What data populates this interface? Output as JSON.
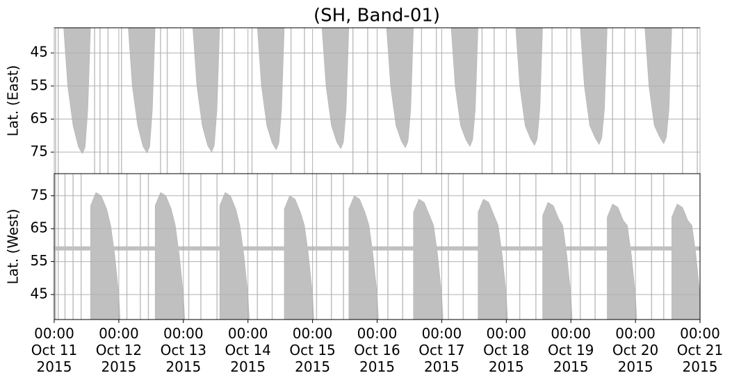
{
  "chart_data": [
    {
      "type": "area",
      "title": "(SH, Band-01)",
      "ylabel": "Lat. (East)",
      "color": "#c0c0c0",
      "invert_y": true,
      "grid": true,
      "xlim": [
        "2015-10-11 00:00",
        "2015-10-21 00:00"
      ],
      "ylim": [
        37.4,
        81.5
      ],
      "yticks": [
        45,
        55,
        65,
        75
      ],
      "polygons": [
        {
          "x": [
            "2015-10-11 03:30",
            "2015-10-11 05:00",
            "2015-10-11 07:00",
            "2015-10-11 09:00",
            "2015-10-11 10:30",
            "2015-10-11 11:30",
            "2015-10-11 12:30",
            "2015-10-11 13:30"
          ],
          "y": [
            37.4,
            55,
            67,
            73.5,
            75.5,
            73.5,
            62,
            37.4
          ]
        },
        {
          "x": [
            "2015-10-12 03:30",
            "2015-10-12 05:00",
            "2015-10-12 07:00",
            "2015-10-12 09:00",
            "2015-10-12 10:30",
            "2015-10-12 11:30",
            "2015-10-12 12:30",
            "2015-10-12 13:30"
          ],
          "y": [
            37.4,
            55,
            67,
            73.3,
            75.3,
            73.3,
            62,
            37.4
          ]
        },
        {
          "x": [
            "2015-10-13 03:30",
            "2015-10-13 05:00",
            "2015-10-13 07:00",
            "2015-10-13 09:00",
            "2015-10-13 10:30",
            "2015-10-13 11:30",
            "2015-10-13 12:30",
            "2015-10-13 13:30"
          ],
          "y": [
            37.4,
            55,
            67,
            73,
            75,
            73,
            62,
            37.4
          ]
        },
        {
          "x": [
            "2015-10-14 03:30",
            "2015-10-14 05:00",
            "2015-10-14 07:00",
            "2015-10-14 09:00",
            "2015-10-14 10:30",
            "2015-10-14 11:30",
            "2015-10-14 12:30",
            "2015-10-14 13:30"
          ],
          "y": [
            37.4,
            55,
            67,
            72.3,
            74.3,
            72.3,
            62,
            37.4
          ]
        },
        {
          "x": [
            "2015-10-15 03:30",
            "2015-10-15 05:00",
            "2015-10-15 07:00",
            "2015-10-15 09:00",
            "2015-10-15 10:30",
            "2015-10-15 11:30",
            "2015-10-15 12:30",
            "2015-10-15 13:30"
          ],
          "y": [
            37.4,
            55,
            67,
            72,
            74,
            72,
            62,
            37.4
          ]
        },
        {
          "x": [
            "2015-10-16 03:30",
            "2015-10-16 05:00",
            "2015-10-16 07:00",
            "2015-10-16 09:00",
            "2015-10-16 10:30",
            "2015-10-16 11:30",
            "2015-10-16 12:30",
            "2015-10-16 13:30"
          ],
          "y": [
            37.4,
            55,
            67,
            71.7,
            73.7,
            71.7,
            62,
            37.4
          ]
        },
        {
          "x": [
            "2015-10-17 03:30",
            "2015-10-17 05:00",
            "2015-10-17 07:00",
            "2015-10-17 09:00",
            "2015-10-17 10:30",
            "2015-10-17 11:30",
            "2015-10-17 12:30",
            "2015-10-17 13:30"
          ],
          "y": [
            37.4,
            55,
            67,
            71.3,
            73.3,
            71.3,
            62,
            37.4
          ]
        },
        {
          "x": [
            "2015-10-18 03:30",
            "2015-10-18 05:00",
            "2015-10-18 07:00",
            "2015-10-18 09:00",
            "2015-10-18 10:30",
            "2015-10-18 11:30",
            "2015-10-18 12:30",
            "2015-10-18 13:30"
          ],
          "y": [
            37.4,
            55,
            67,
            71,
            73,
            71,
            62,
            37.4
          ]
        },
        {
          "x": [
            "2015-10-19 03:30",
            "2015-10-19 05:00",
            "2015-10-19 07:00",
            "2015-10-19 09:00",
            "2015-10-19 10:30",
            "2015-10-19 11:30",
            "2015-10-19 12:30",
            "2015-10-19 13:30"
          ],
          "y": [
            37.4,
            55,
            67,
            70.7,
            72.7,
            70.7,
            62,
            37.4
          ]
        },
        {
          "x": [
            "2015-10-20 03:30",
            "2015-10-20 05:00",
            "2015-10-20 07:00",
            "2015-10-20 09:00",
            "2015-10-20 10:30",
            "2015-10-20 11:30",
            "2015-10-20 12:30",
            "2015-10-20 13:30"
          ],
          "y": [
            37.4,
            55,
            67,
            70.5,
            72.5,
            70.5,
            62,
            37.4
          ]
        }
      ],
      "tracks": [
        "2015-10-11 00:30",
        "2015-10-11 01:30",
        "2015-10-11 15:00",
        "2015-10-11 17:00",
        "2015-10-11 20:00",
        "2015-10-12 01:00",
        "2015-10-12 15:30",
        "2015-10-12 18:00",
        "2015-10-12 23:00",
        "2015-10-13 14:30",
        "2015-10-13 19:00",
        "2015-10-14 01:30",
        "2015-10-14 16:00",
        "2015-10-14 21:00",
        "2015-10-15 15:00",
        "2015-10-15 20:30",
        "2015-10-16 16:30",
        "2015-10-16 22:00",
        "2015-10-17 15:00",
        "2015-10-17 19:30",
        "2015-10-18 17:00",
        "2015-10-18 22:30",
        "2015-10-19 15:30",
        "2015-10-19 20:00",
        "2015-10-20 17:30",
        "2015-10-20 23:00"
      ]
    },
    {
      "type": "area",
      "ylabel": "Lat. (West)",
      "color": "#c0c0c0",
      "invert_y": false,
      "grid": true,
      "xlim": [
        "2015-10-11 00:00",
        "2015-10-21 00:00"
      ],
      "ylim": [
        37.4,
        81.7
      ],
      "yticks": [
        45,
        55,
        65,
        75
      ],
      "xticks": [
        {
          "value": "2015-10-11 00:00",
          "label": "00:00\nOct 11\n2015"
        },
        {
          "value": "2015-10-12 00:00",
          "label": "00:00\nOct 12\n2015"
        },
        {
          "value": "2015-10-13 00:00",
          "label": "00:00\nOct 13\n2015"
        },
        {
          "value": "2015-10-14 00:00",
          "label": "00:00\nOct 14\n2015"
        },
        {
          "value": "2015-10-15 00:00",
          "label": "00:00\nOct 15\n2015"
        },
        {
          "value": "2015-10-16 00:00",
          "label": "00:00\nOct 16\n2015"
        },
        {
          "value": "2015-10-17 00:00",
          "label": "00:00\nOct 17\n2015"
        },
        {
          "value": "2015-10-18 00:00",
          "label": "00:00\nOct 18\n2015"
        },
        {
          "value": "2015-10-19 00:00",
          "label": "00:00\nOct 19\n2015"
        },
        {
          "value": "2015-10-20 00:00",
          "label": "00:00\nOct 20\n2015"
        },
        {
          "value": "2015-10-21 00:00",
          "label": "00:00\nOct 21\n2015"
        }
      ],
      "band": {
        "y": 59,
        "x": [
          "2015-10-11 00:00",
          "2015-10-21 00:00"
        ]
      },
      "polygons": [
        {
          "x": [
            "2015-10-11 13:30",
            "2015-10-11 13:30",
            "2015-10-11 15:30",
            "2015-10-11 17:30",
            "2015-10-11 19:30",
            "2015-10-11 21:00",
            "2015-10-11 22:30",
            "2015-10-12 00:00",
            "2015-10-12 00:30"
          ],
          "y": [
            37.4,
            72,
            76,
            75,
            71,
            66,
            57,
            45,
            37.4
          ]
        },
        {
          "x": [
            "2015-10-12 13:30",
            "2015-10-12 13:30",
            "2015-10-12 15:30",
            "2015-10-12 17:30",
            "2015-10-12 19:30",
            "2015-10-12 21:00",
            "2015-10-12 22:30",
            "2015-10-13 00:00",
            "2015-10-13 00:30"
          ],
          "y": [
            37.4,
            72,
            76,
            75,
            71,
            66,
            57,
            45,
            37.4
          ]
        },
        {
          "x": [
            "2015-10-13 13:30",
            "2015-10-13 13:30",
            "2015-10-13 15:30",
            "2015-10-13 17:30",
            "2015-10-13 19:30",
            "2015-10-13 21:00",
            "2015-10-13 22:30",
            "2015-10-14 00:00",
            "2015-10-14 00:30"
          ],
          "y": [
            37.4,
            72,
            76,
            75,
            71,
            66,
            57,
            45,
            37.4
          ]
        },
        {
          "x": [
            "2015-10-14 13:30",
            "2015-10-14 13:30",
            "2015-10-14 15:30",
            "2015-10-14 17:30",
            "2015-10-14 19:30",
            "2015-10-14 21:00",
            "2015-10-14 22:30",
            "2015-10-15 00:00",
            "2015-10-15 00:30"
          ],
          "y": [
            37.4,
            71,
            75,
            74,
            70,
            66,
            57,
            45,
            37.4
          ]
        },
        {
          "x": [
            "2015-10-15 13:30",
            "2015-10-15 13:30",
            "2015-10-15 15:30",
            "2015-10-15 17:30",
            "2015-10-15 19:30",
            "2015-10-15 21:00",
            "2015-10-15 22:30",
            "2015-10-16 00:00",
            "2015-10-16 00:30"
          ],
          "y": [
            37.4,
            71,
            75,
            74,
            70,
            66,
            57,
            45,
            37.4
          ]
        },
        {
          "x": [
            "2015-10-16 13:30",
            "2015-10-16 13:30",
            "2015-10-16 15:30",
            "2015-10-16 17:30",
            "2015-10-16 19:30",
            "2015-10-16 21:00",
            "2015-10-16 22:30",
            "2015-10-17 00:00",
            "2015-10-17 00:30"
          ],
          "y": [
            37.4,
            70,
            74,
            73,
            69,
            66,
            57,
            45,
            37.4
          ]
        },
        {
          "x": [
            "2015-10-17 13:30",
            "2015-10-17 13:30",
            "2015-10-17 15:30",
            "2015-10-17 17:30",
            "2015-10-17 19:30",
            "2015-10-17 21:00",
            "2015-10-17 22:30",
            "2015-10-18 00:00",
            "2015-10-18 00:30"
          ],
          "y": [
            37.4,
            70,
            74,
            73,
            69,
            66,
            57,
            45,
            37.4
          ]
        },
        {
          "x": [
            "2015-10-18 13:30",
            "2015-10-18 13:30",
            "2015-10-18 15:30",
            "2015-10-18 17:30",
            "2015-10-18 19:30",
            "2015-10-18 21:00",
            "2015-10-18 22:30",
            "2015-10-19 00:00",
            "2015-10-19 00:30"
          ],
          "y": [
            37.4,
            69,
            73,
            72,
            68,
            66,
            57,
            45,
            37.4
          ]
        },
        {
          "x": [
            "2015-10-19 13:30",
            "2015-10-19 13:30",
            "2015-10-19 15:30",
            "2015-10-19 17:30",
            "2015-10-19 19:30",
            "2015-10-19 21:00",
            "2015-10-19 22:30",
            "2015-10-20 00:00",
            "2015-10-20 00:30"
          ],
          "y": [
            37.4,
            68.5,
            72.5,
            71.5,
            67.5,
            66,
            57,
            45,
            37.4
          ]
        },
        {
          "x": [
            "2015-10-20 13:30",
            "2015-10-20 13:30",
            "2015-10-20 15:30",
            "2015-10-20 17:30",
            "2015-10-20 19:30",
            "2015-10-20 21:00",
            "2015-10-20 22:30",
            "2015-10-21 00:00",
            "2015-10-21 00:30"
          ],
          "y": [
            37.4,
            68.5,
            72.5,
            71.5,
            67.5,
            66,
            57,
            45,
            37.4
          ]
        }
      ],
      "tracks": [
        "2015-10-11 00:30",
        "2015-10-11 01:30",
        "2015-10-11 04:00",
        "2015-10-11 07:00",
        "2015-10-11 10:00",
        "2015-10-12 03:00",
        "2015-10-12 08:00",
        "2015-10-12 11:00",
        "2015-10-13 02:00",
        "2015-10-13 06:30",
        "2015-10-13 12:30",
        "2015-10-14 03:30",
        "2015-10-14 09:00",
        "2015-10-15 01:30",
        "2015-10-15 07:00",
        "2015-10-15 11:30",
        "2015-10-16 04:00",
        "2015-10-16 09:30",
        "2015-10-17 02:30",
        "2015-10-17 08:00",
        "2015-10-18 05:00",
        "2015-10-18 11:00",
        "2015-10-19 03:30",
        "2015-10-19 09:00",
        "2015-10-20 06:00",
        "2015-10-20 10:30"
      ]
    }
  ]
}
